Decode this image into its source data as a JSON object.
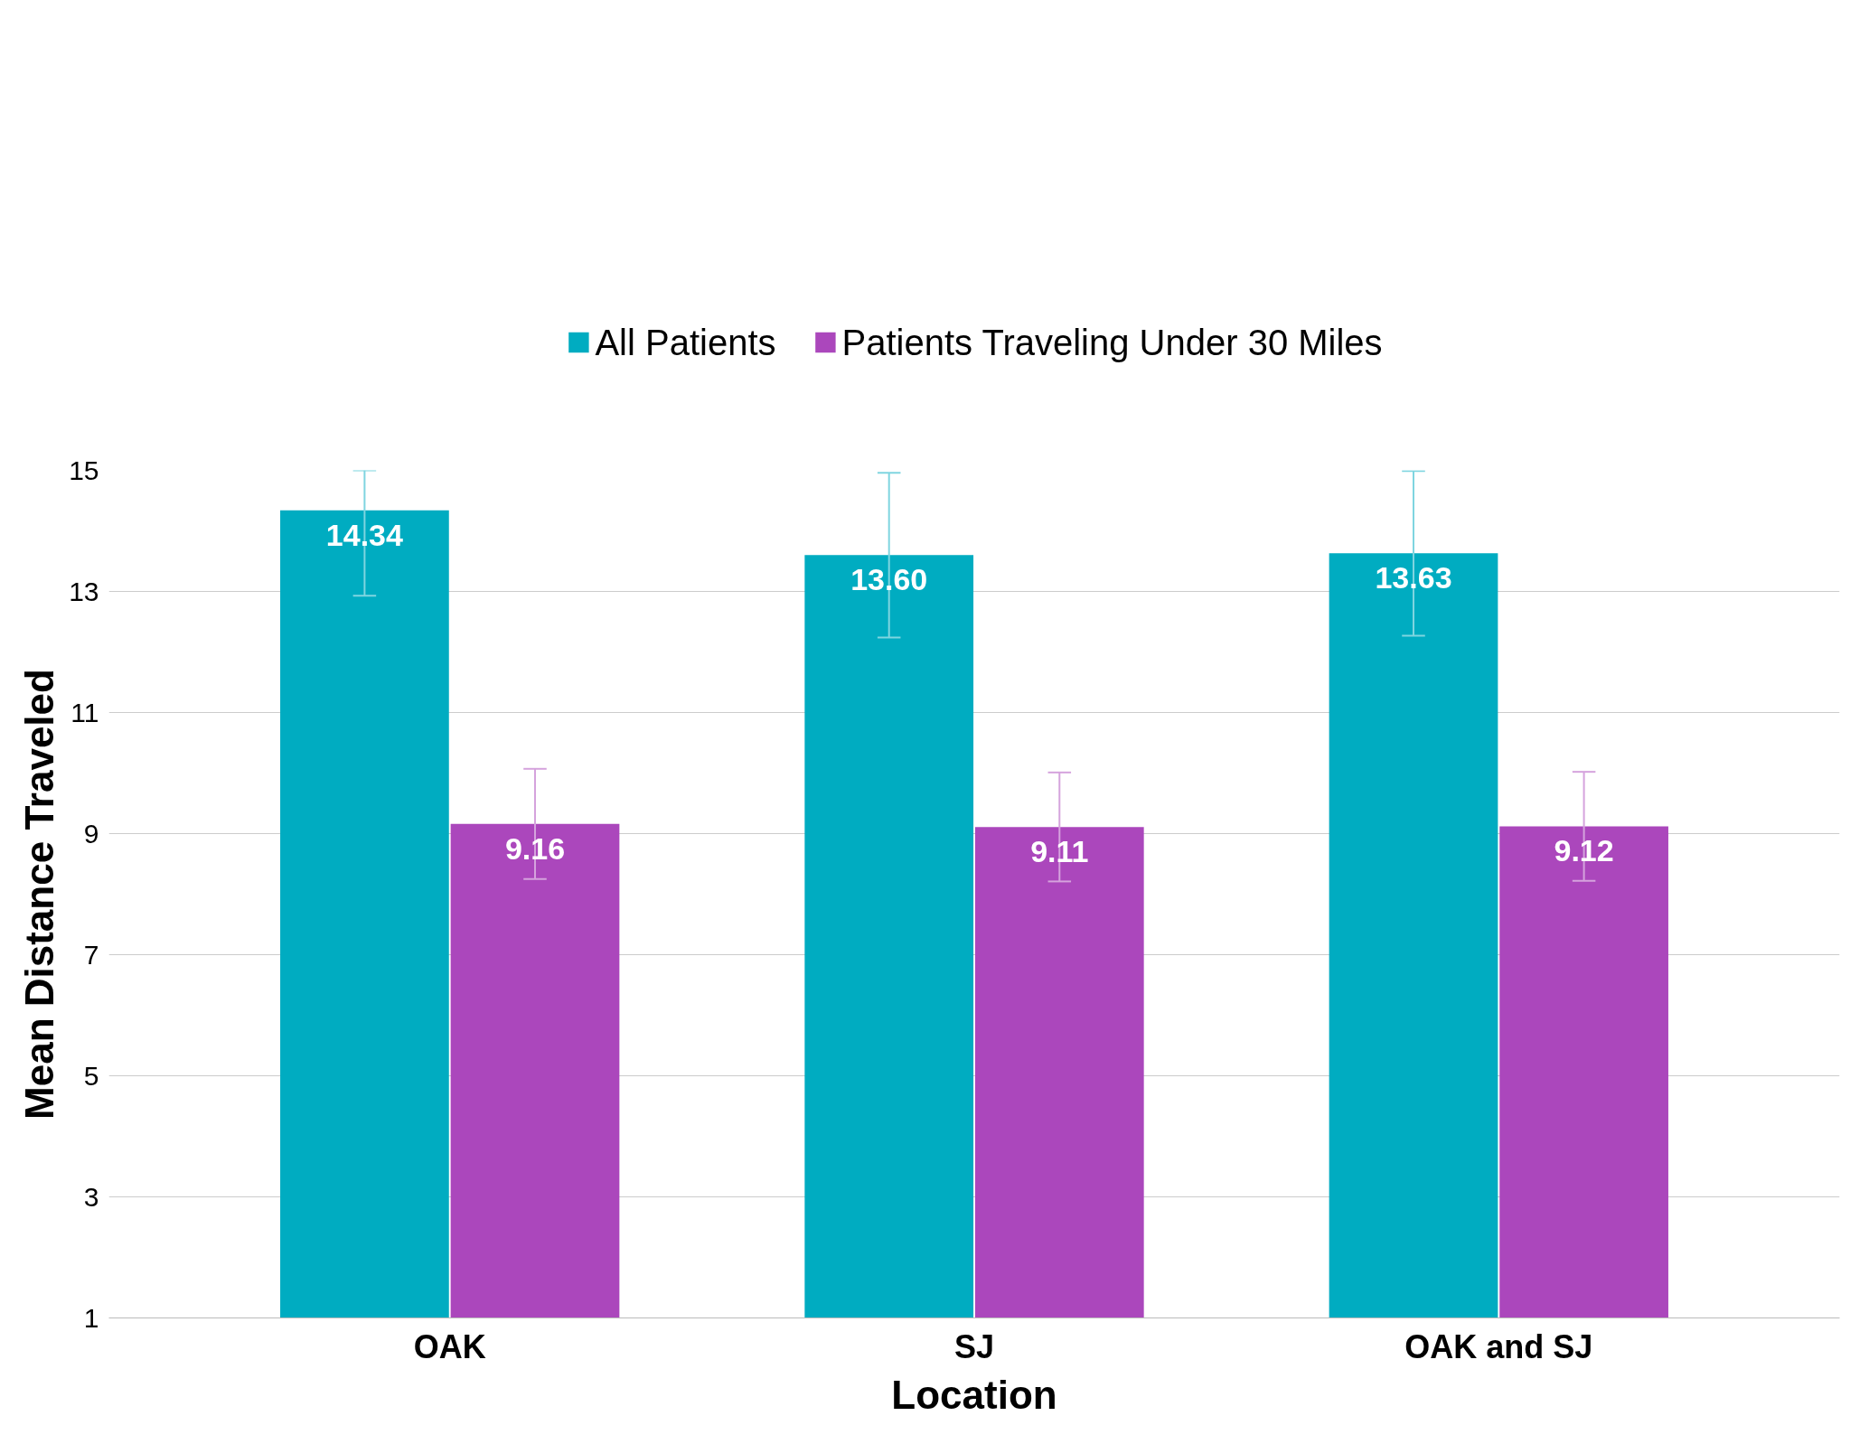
{
  "chart_data": {
    "type": "bar",
    "xlabel": "Location",
    "ylabel": "Mean Distance Traveled",
    "categories": [
      "OAK",
      "SJ",
      "OAK and SJ"
    ],
    "series": [
      {
        "name": "All Patients",
        "color": "#00acc1",
        "values": [
          14.34,
          13.6,
          13.63
        ],
        "errors": [
          [
            12.93,
            15
          ],
          1.36,
          1.36
        ],
        "value_labels": [
          "14.34",
          "13.60",
          "13.63"
        ]
      },
      {
        "name": "Patients Traveling Under 30 Miles",
        "color": "#ab47bc",
        "values": [
          9.16,
          9.11,
          9.12
        ],
        "errors": [
          0.91,
          0.9,
          0.9
        ],
        "value_labels": [
          "9.16",
          "9.11",
          "9.12"
        ]
      }
    ],
    "ylim": [
      1,
      15
    ],
    "yticks": [
      1,
      3,
      5,
      7,
      9,
      11,
      13,
      15
    ],
    "grid": "y",
    "legend": "top"
  }
}
